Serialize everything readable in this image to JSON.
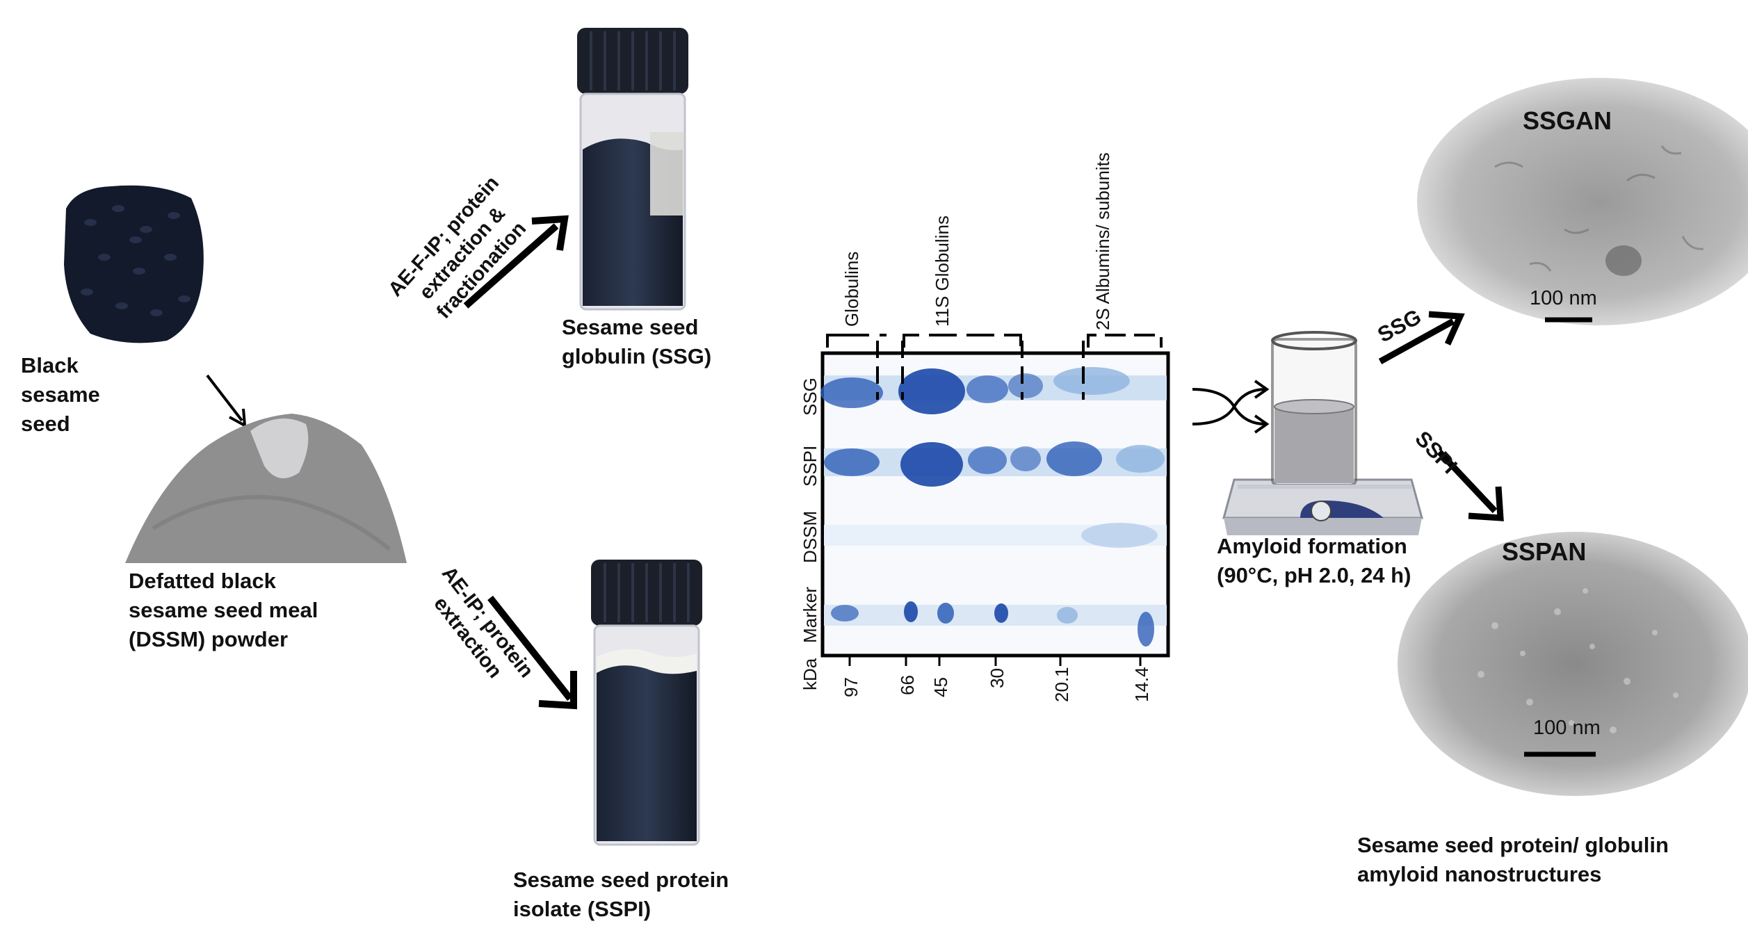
{
  "colors": {
    "gel_band": "#2f5fb8",
    "gel_band_light": "#8eb4df",
    "seed": "#121a2b",
    "powder": "#8f8f8f",
    "tem_bg": "#b4b4b4",
    "arrow": "#000000"
  },
  "raw": {
    "seed_label": [
      "Black",
      "sesame",
      "seed"
    ],
    "meal_label": [
      "Defatted black",
      "sesame seed meal",
      "(DSSM) powder"
    ]
  },
  "top_route": {
    "arrow_label": [
      "AE-F-IP; protein",
      "extraction &",
      "fractionation"
    ],
    "product_label": [
      "Sesame seed",
      "globulin (SSG)"
    ]
  },
  "bottom_route": {
    "arrow_label": [
      "AE-IP; protein",
      "extraction"
    ],
    "product_label": [
      "Sesame seed protein",
      "isolate (SSPI)"
    ]
  },
  "gel": {
    "brackets": [
      "Globulins",
      "11S Globulins",
      "2S Albumins/ subunits"
    ],
    "lanes": [
      "SSG",
      "SSPI",
      "DSSM",
      "Marker"
    ],
    "unit": "kDa",
    "markers": [
      "97",
      "66",
      "45",
      "30",
      "20.1",
      "14.4"
    ]
  },
  "amyloid": {
    "label_line1": "Amyloid formation",
    "label_line2": "(90°C, pH 2.0, 24 h)",
    "arrow_ssg": "SSG",
    "arrow_sspi": "SSPI"
  },
  "tem": {
    "top_title": "SSGAN",
    "bottom_title": "SSPAN",
    "scale": "100 nm"
  },
  "caption": [
    "Sesame seed protein/ globulin",
    "amyloid nanostructures"
  ]
}
